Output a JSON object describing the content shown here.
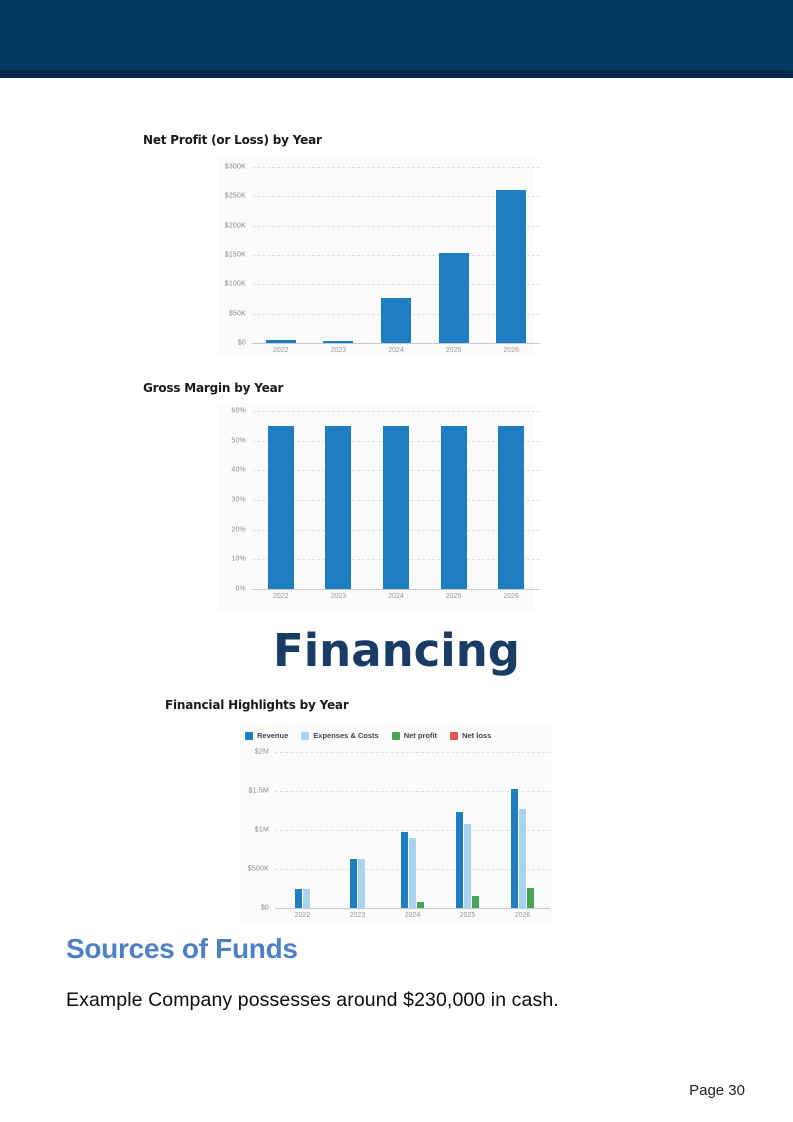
{
  "headings": {
    "financing": "Financing",
    "sources_of_funds": "Sources of Funds"
  },
  "paragraphs": {
    "sources_text": "Example Company possesses around $230,000 in cash."
  },
  "footer": {
    "page_number": "Page 30"
  },
  "colors": {
    "header_navy": "#003a63",
    "header_navy_dark": "#03294a",
    "bar_blue": "#1f7dc2",
    "light_blue": "#a8d4f2",
    "green": "#4aa455",
    "red": "#e2574b",
    "financing_navy": "#183c66",
    "sources_blue": "#4e81c3"
  },
  "chart_data": [
    {
      "id": "net-profit-by-year",
      "type": "bar",
      "title": "Net Profit (or Loss) by Year",
      "categories": [
        "2022",
        "2023",
        "2024",
        "2025",
        "2026"
      ],
      "values": [
        5000,
        3000,
        77000,
        154000,
        260000
      ],
      "bar_color": "#1f7dc2",
      "ylim": [
        0,
        300000
      ],
      "ytick_labels": [
        "$0",
        "$50K",
        "$100K",
        "$150K",
        "$200K",
        "$250K",
        "$300K"
      ],
      "grid": true,
      "legend": false
    },
    {
      "id": "gross-margin-by-year",
      "type": "bar",
      "title": "Gross Margin by Year",
      "categories": [
        "2022",
        "2023",
        "2024",
        "2025",
        "2026"
      ],
      "values": [
        55,
        55,
        55,
        55,
        55
      ],
      "bar_color": "#1f7dc2",
      "ylim": [
        0,
        60
      ],
      "ytick_labels": [
        "0%",
        "10%",
        "20%",
        "30%",
        "40%",
        "50%",
        "60%"
      ],
      "grid": true,
      "legend": false
    },
    {
      "id": "financial-highlights-by-year",
      "type": "bar",
      "title": "Financial Highlights by Year",
      "categories": [
        "2022",
        "2023",
        "2024",
        "2025",
        "2026"
      ],
      "series": [
        {
          "name": "Revenue",
          "color": "#1f7dc2",
          "values": [
            250000,
            625000,
            975000,
            1230000,
            1530000
          ]
        },
        {
          "name": "Expenses & Costs",
          "color": "#a8d4f2",
          "values": [
            245000,
            622000,
            900000,
            1075000,
            1270000
          ]
        },
        {
          "name": "Net profit",
          "color": "#4aa455",
          "values": [
            null,
            null,
            77000,
            154000,
            260000
          ]
        },
        {
          "name": "Net loss",
          "color": "#e2574b",
          "values": [
            null,
            null,
            null,
            null,
            null
          ]
        }
      ],
      "ylim": [
        0,
        2000000
      ],
      "ytick_labels": [
        "$0",
        "$500K",
        "$1M",
        "$1.5M",
        "$2M"
      ],
      "grid": true,
      "legend": true,
      "legend_position": "top"
    }
  ]
}
